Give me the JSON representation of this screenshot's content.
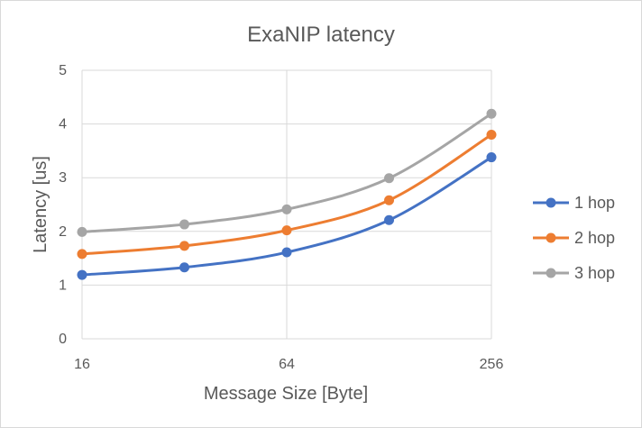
{
  "chart_data": {
    "type": "line",
    "title": "ExaNIP latency",
    "xlabel": "Message Size [Byte]",
    "ylabel": "Latency [us]",
    "x_scale": "log2",
    "x": [
      16,
      32,
      64,
      128,
      256
    ],
    "x_ticks": [
      "16",
      "64",
      "256"
    ],
    "y_ticks": [
      "0",
      "1",
      "2",
      "3",
      "4",
      "5"
    ],
    "ylim": [
      0,
      5
    ],
    "grid": true,
    "legend_position": "right",
    "series": [
      {
        "name": "1 hop",
        "color": "#4472c4",
        "values": [
          1.19,
          1.33,
          1.61,
          2.21,
          3.38
        ]
      },
      {
        "name": "2 hop",
        "color": "#ed7d31",
        "values": [
          1.58,
          1.73,
          2.02,
          2.58,
          3.8
        ]
      },
      {
        "name": "3 hop",
        "color": "#a5a5a5",
        "values": [
          1.99,
          2.13,
          2.41,
          2.99,
          4.19
        ]
      }
    ]
  }
}
